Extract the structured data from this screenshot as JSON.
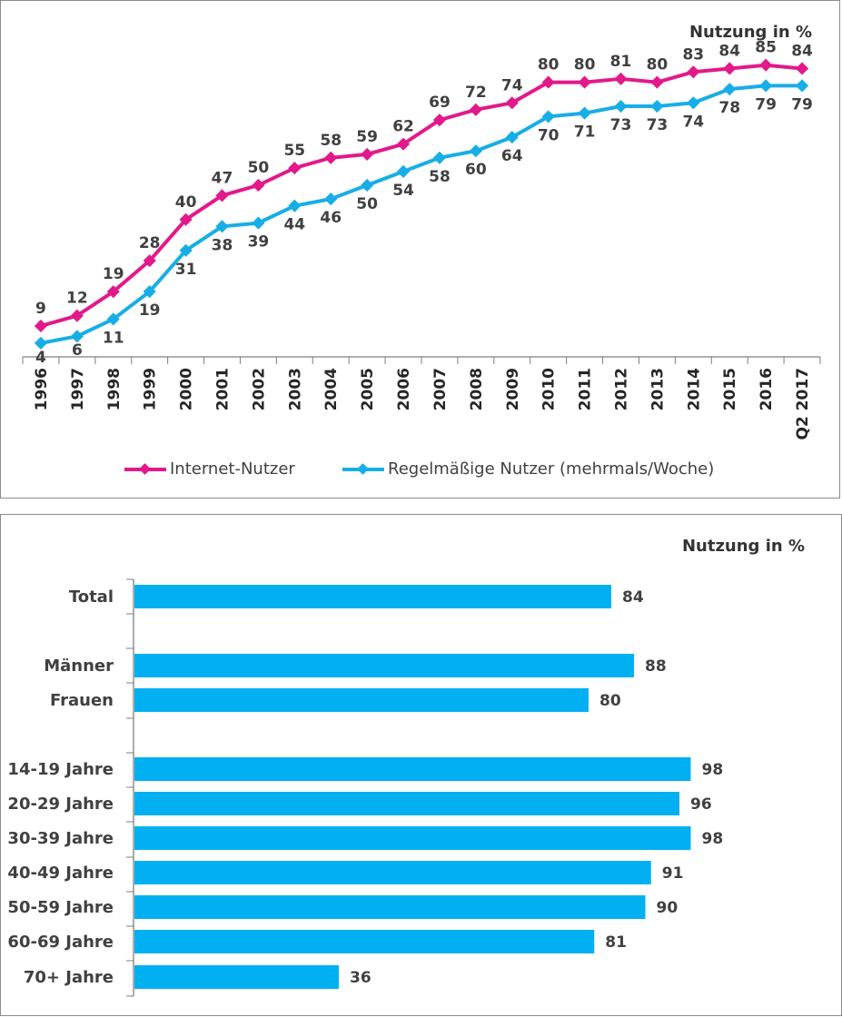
{
  "colors": {
    "internet": "#e2198a",
    "regular": "#17aee6",
    "bar": "#00b0f0",
    "axis": "#7f7f7f",
    "text": "#404040"
  },
  "chart_data": [
    {
      "type": "line",
      "unit_label": "Nutzung in %",
      "x": [
        "1996",
        "1997",
        "1998",
        "1999",
        "2000",
        "2001",
        "2002",
        "2003",
        "2004",
        "2005",
        "2006",
        "2007",
        "2008",
        "2009",
        "2010",
        "2011",
        "2012",
        "2013",
        "2014",
        "2015",
        "2016",
        "Q2 2017"
      ],
      "series": [
        {
          "name": "Internet-Nutzer",
          "values": [
            9,
            12,
            19,
            28,
            40,
            47,
            50,
            55,
            58,
            59,
            62,
            69,
            72,
            74,
            80,
            80,
            81,
            80,
            83,
            84,
            85,
            84
          ]
        },
        {
          "name": "Regelmäßige Nutzer (mehrmals/Woche)",
          "values": [
            4,
            6,
            11,
            19,
            31,
            38,
            39,
            44,
            46,
            50,
            54,
            58,
            60,
            64,
            70,
            71,
            73,
            73,
            74,
            78,
            79,
            79
          ]
        }
      ],
      "ylim": [
        0,
        100
      ],
      "grid": false,
      "legend": "bottom"
    },
    {
      "type": "bar",
      "orientation": "horizontal",
      "unit_label": "Nutzung in %",
      "categories": [
        "Total",
        "Männer",
        "Frauen",
        "14-19 Jahre",
        "20-29 Jahre",
        "30-39 Jahre",
        "40-49 Jahre",
        "50-59 Jahre",
        "60-69 Jahre",
        "70+ Jahre"
      ],
      "values": [
        84,
        88,
        80,
        98,
        96,
        98,
        91,
        90,
        81,
        36
      ],
      "xlim": [
        0,
        100
      ],
      "grid": false
    }
  ]
}
